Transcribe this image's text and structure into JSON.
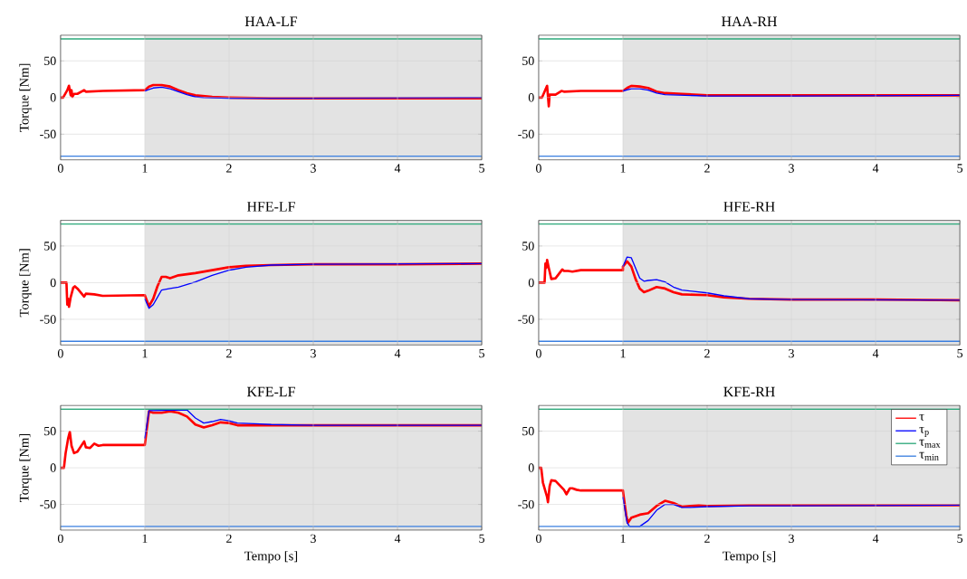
{
  "chart_data": [
    {
      "type": "line",
      "title": "HAA-LF",
      "ylabel": "Torque [Nm]",
      "xlim": [
        0,
        5
      ],
      "ylim": [
        -85,
        85
      ],
      "xticks": [
        0,
        1,
        2,
        3,
        4,
        5
      ],
      "yticks": [
        -50,
        0,
        50
      ],
      "grid": true,
      "bands": [
        {
          "axis": "x",
          "from": 1,
          "to": 5,
          "color": "#e3e3e3"
        }
      ],
      "series": [
        {
          "color": "#ff0000",
          "x": [
            0,
            0.03,
            0.08,
            0.1,
            0.12,
            0.13,
            0.14,
            0.16,
            0.2,
            0.28,
            0.3,
            0.5,
            1.0,
            1.05,
            1.1,
            1.2,
            1.3,
            1.4,
            1.5,
            1.6,
            1.8,
            2,
            2.5,
            3,
            4,
            5
          ],
          "values": [
            0,
            0,
            10,
            16,
            3,
            10,
            1,
            5,
            5,
            10,
            8,
            9,
            10,
            15,
            17,
            17,
            15,
            10,
            6,
            3,
            1,
            0,
            -1,
            -1,
            -1,
            -1
          ]
        },
        {
          "color": "#0000ff",
          "x": [
            1,
            1.05,
            1.1,
            1.2,
            1.3,
            1.4,
            1.5,
            1.6,
            1.7,
            2,
            3,
            5
          ],
          "values": [
            9,
            11,
            13,
            14,
            12,
            8,
            4,
            1,
            0,
            -1,
            -1,
            0
          ]
        },
        {
          "color": "#2ca87a",
          "x": [
            0,
            5
          ],
          "values": [
            80,
            80
          ]
        },
        {
          "color": "#3a7fe0",
          "x": [
            0,
            5
          ],
          "values": [
            -80,
            -80
          ]
        }
      ]
    },
    {
      "type": "line",
      "title": "HAA-RH",
      "xlim": [
        0,
        5
      ],
      "ylim": [
        -85,
        85
      ],
      "xticks": [
        0,
        1,
        2,
        3,
        4,
        5
      ],
      "yticks": [
        -50,
        0,
        50
      ],
      "grid": true,
      "bands": [
        {
          "axis": "x",
          "from": 1,
          "to": 5,
          "color": "#e3e3e3"
        }
      ],
      "series": [
        {
          "color": "#ff0000",
          "x": [
            0,
            0.04,
            0.07,
            0.1,
            0.12,
            0.13,
            0.2,
            0.27,
            0.3,
            0.5,
            1,
            1.05,
            1.1,
            1.2,
            1.3,
            1.4,
            1.5,
            1.7,
            2,
            3,
            5
          ],
          "values": [
            0,
            0,
            8,
            16,
            -12,
            4,
            4,
            9,
            8,
            9,
            9,
            13,
            16,
            15,
            13,
            8,
            6,
            5,
            3,
            3,
            3
          ]
        },
        {
          "color": "#0000ff",
          "x": [
            1,
            1.1,
            1.2,
            1.3,
            1.4,
            1.5,
            2,
            3,
            5
          ],
          "values": [
            9,
            12,
            12,
            10,
            6,
            4,
            2,
            2,
            3
          ]
        },
        {
          "color": "#2ca87a",
          "x": [
            0,
            5
          ],
          "values": [
            80,
            80
          ]
        },
        {
          "color": "#3a7fe0",
          "x": [
            0,
            5
          ],
          "values": [
            -80,
            -80
          ]
        }
      ]
    },
    {
      "type": "line",
      "title": "HFE-LF",
      "ylabel": "Torque [Nm]",
      "xlim": [
        0,
        5
      ],
      "ylim": [
        -85,
        85
      ],
      "xticks": [
        0,
        1,
        2,
        3,
        4,
        5
      ],
      "yticks": [
        -50,
        0,
        50
      ],
      "grid": true,
      "bands": [
        {
          "axis": "x",
          "from": 1,
          "to": 5,
          "color": "#e3e3e3"
        }
      ],
      "series": [
        {
          "color": "#ff0000",
          "x": [
            0,
            0.07,
            0.08,
            0.09,
            0.1,
            0.12,
            0.15,
            0.17,
            0.2,
            0.28,
            0.3,
            0.4,
            0.5,
            1,
            1.05,
            1.1,
            1.15,
            1.2,
            1.25,
            1.3,
            1.4,
            1.6,
            1.8,
            2,
            2.2,
            2.5,
            3,
            4,
            5
          ],
          "values": [
            0,
            0,
            -30,
            -22,
            -33,
            -20,
            -7,
            -5,
            -8,
            -19,
            -15,
            -16,
            -18,
            -17,
            -32,
            -22,
            -5,
            8,
            8,
            6,
            10,
            13,
            17,
            21,
            23,
            24,
            25,
            25,
            26
          ]
        },
        {
          "color": "#0000ff",
          "x": [
            1,
            1.05,
            1.1,
            1.15,
            1.2,
            1.3,
            1.4,
            1.6,
            1.8,
            2,
            2.2,
            2.5,
            3,
            5
          ],
          "values": [
            -22,
            -35,
            -30,
            -20,
            -10,
            -8,
            -6,
            1,
            10,
            17,
            21,
            24,
            25,
            26
          ]
        },
        {
          "color": "#2ca87a",
          "x": [
            0,
            5
          ],
          "values": [
            80,
            80
          ]
        },
        {
          "color": "#3a7fe0",
          "x": [
            0,
            5
          ],
          "values": [
            -80,
            -80
          ]
        }
      ]
    },
    {
      "type": "line",
      "title": "HFE-RH",
      "xlim": [
        0,
        5
      ],
      "ylim": [
        -85,
        85
      ],
      "xticks": [
        0,
        1,
        2,
        3,
        4,
        5
      ],
      "yticks": [
        -50,
        0,
        50
      ],
      "grid": true,
      "bands": [
        {
          "axis": "x",
          "from": 1,
          "to": 5,
          "color": "#e3e3e3"
        }
      ],
      "series": [
        {
          "color": "#ff0000",
          "x": [
            0,
            0.07,
            0.08,
            0.09,
            0.1,
            0.12,
            0.15,
            0.2,
            0.28,
            0.3,
            0.35,
            0.4,
            0.5,
            1,
            1,
            1.05,
            1.1,
            1.15,
            1.2,
            1.25,
            1.3,
            1.4,
            1.5,
            1.6,
            1.7,
            2,
            2.2,
            2.5,
            3,
            4,
            5
          ],
          "values": [
            0,
            0,
            26,
            20,
            31,
            20,
            5,
            6,
            18,
            16,
            16,
            15,
            17,
            17,
            22,
            29,
            22,
            5,
            -8,
            -13,
            -11,
            -6,
            -8,
            -13,
            -16,
            -17,
            -20,
            -22,
            -23,
            -23,
            -24
          ]
        },
        {
          "color": "#0000ff",
          "x": [
            1,
            1.05,
            1.1,
            1.15,
            1.2,
            1.25,
            1.3,
            1.4,
            1.5,
            1.6,
            1.7,
            2,
            2.2,
            2.5,
            3,
            5
          ],
          "values": [
            22,
            35,
            34,
            20,
            6,
            2,
            3,
            4,
            1,
            -6,
            -10,
            -14,
            -18,
            -22,
            -23,
            -24
          ]
        },
        {
          "color": "#2ca87a",
          "x": [
            0,
            5
          ],
          "values": [
            80,
            80
          ]
        },
        {
          "color": "#3a7fe0",
          "x": [
            0,
            5
          ],
          "values": [
            -80,
            -80
          ]
        }
      ]
    },
    {
      "type": "line",
      "title": "KFE-LF",
      "xlabel": "Tempo [s]",
      "ylabel": "Torque [Nm]",
      "xlim": [
        0,
        5
      ],
      "ylim": [
        -85,
        85
      ],
      "xticks": [
        0,
        1,
        2,
        3,
        4,
        5
      ],
      "yticks": [
        -50,
        0,
        50
      ],
      "grid": true,
      "bands": [
        {
          "axis": "x",
          "from": 1,
          "to": 5,
          "color": "#e3e3e3"
        }
      ],
      "series": [
        {
          "color": "#ff0000",
          "x": [
            0,
            0.04,
            0.06,
            0.09,
            0.11,
            0.13,
            0.16,
            0.2,
            0.28,
            0.3,
            0.35,
            0.4,
            0.45,
            0.5,
            1,
            1.01,
            1.05,
            1.1,
            1.2,
            1.3,
            1.4,
            1.5,
            1.6,
            1.7,
            1.8,
            1.9,
            2,
            2.1,
            2.2,
            2.5,
            3,
            5
          ],
          "values": [
            0,
            0,
            20,
            40,
            49,
            30,
            20,
            22,
            36,
            28,
            27,
            33,
            30,
            31,
            31,
            40,
            77,
            75,
            75,
            77,
            75,
            70,
            59,
            55,
            58,
            62,
            61,
            58,
            58,
            58,
            58,
            58
          ]
        },
        {
          "color": "#0000ff",
          "x": [
            1,
            1.05,
            1.5,
            1.6,
            1.7,
            1.8,
            1.9,
            2,
            2.1,
            2.3,
            2.5,
            3,
            5
          ],
          "values": [
            40,
            78,
            79,
            68,
            61,
            63,
            66,
            64,
            61,
            60,
            59,
            58,
            58
          ]
        },
        {
          "color": "#2ca87a",
          "x": [
            0,
            5
          ],
          "values": [
            80,
            80
          ]
        },
        {
          "color": "#3a7fe0",
          "x": [
            0,
            5
          ],
          "values": [
            -80,
            -80
          ]
        }
      ]
    },
    {
      "type": "line",
      "title": "KFE-RH",
      "xlabel": "Tempo [s]",
      "xlim": [
        0,
        5
      ],
      "ylim": [
        -85,
        85
      ],
      "xticks": [
        0,
        1,
        2,
        3,
        4,
        5
      ],
      "yticks": [
        -50,
        0,
        50
      ],
      "grid": true,
      "legend": "top right",
      "bands": [
        {
          "axis": "x",
          "from": 1,
          "to": 5,
          "color": "#e3e3e3"
        }
      ],
      "series": [
        {
          "name": "τ",
          "color": "#ff0000",
          "x": [
            0,
            0.03,
            0.05,
            0.1,
            0.11,
            0.13,
            0.15,
            0.2,
            0.3,
            0.33,
            0.37,
            0.4,
            0.45,
            0.5,
            1,
            1.01,
            1.04,
            1.06,
            1.1,
            1.2,
            1.3,
            1.4,
            1.5,
            1.6,
            1.7,
            1.8,
            1.9,
            2,
            2.5,
            3,
            5
          ],
          "values": [
            0,
            0,
            -20,
            -40,
            -47,
            -25,
            -17,
            -18,
            -30,
            -36,
            -28,
            -28,
            -30,
            -31,
            -31,
            -40,
            -65,
            -75,
            -68,
            -64,
            -62,
            -52,
            -45,
            -48,
            -53,
            -52,
            -51,
            -52,
            -51,
            -51,
            -51
          ]
        },
        {
          "name": "τ$_{p}$",
          "color": "#0000ff",
          "x": [
            1,
            1.05,
            1.08,
            1.2,
            1.3,
            1.4,
            1.5,
            1.6,
            1.7,
            1.8,
            2,
            2.5,
            3,
            5
          ],
          "values": [
            -40,
            -75,
            -80,
            -80,
            -72,
            -58,
            -50,
            -50,
            -54,
            -54,
            -53,
            -52,
            -52,
            -51
          ]
        },
        {
          "name": "τ$_{max}$",
          "color": "#2ca87a",
          "x": [
            0,
            5
          ],
          "values": [
            80,
            80
          ]
        },
        {
          "name": "τ$_{min}$",
          "color": "#3a7fe0",
          "x": [
            0,
            5
          ],
          "values": [
            -80,
            -80
          ]
        }
      ]
    }
  ]
}
